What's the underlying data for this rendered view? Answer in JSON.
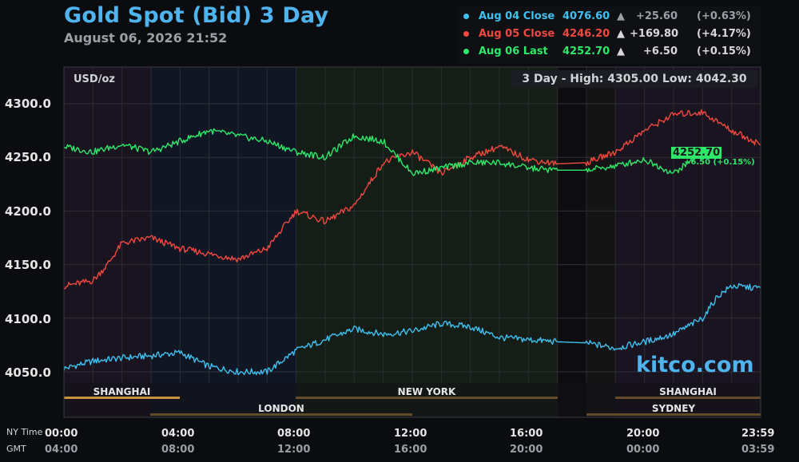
{
  "header": {
    "title": "Gold Spot (Bid) 3 Day",
    "timestamp": "August 06, 2026 21:52"
  },
  "legend": [
    {
      "label": "Aug 04 Close",
      "value": "4076.60",
      "arrow": "▲",
      "change": "+25.60",
      "pct": "(+0.63%)",
      "color": "#3fc0ef",
      "dim": true
    },
    {
      "label": "Aug 05 Close",
      "value": "4246.20",
      "arrow": "▲",
      "change": "+169.80",
      "pct": "(+4.17%)",
      "color": "#f0493f",
      "dim": false
    },
    {
      "label": "Aug 06 Last",
      "value": "4252.70",
      "arrow": "▲",
      "change": "+6.50",
      "pct": "(+0.15%)",
      "color": "#2ee86a",
      "dim": false
    }
  ],
  "stats": {
    "unit": "USD/oz",
    "high_low": "3 Day - High: 4305.00  Low: 4042.30"
  },
  "watermark": "kitco.com",
  "last_marker": {
    "value": "4252.70",
    "change": "+6.50 (+0.15%)"
  },
  "sessions": {
    "top_row": [
      "SHANGHAI",
      "NEW YORK",
      "SHANGHAI"
    ],
    "bottom_row": [
      "LONDON",
      "SYDNEY"
    ]
  },
  "time_axis": {
    "ny_label": "NY Time",
    "gmt_label": "GMT",
    "ny_ticks": [
      "00:00",
      "04:00",
      "08:00",
      "12:00",
      "16:00",
      "20:00",
      "23:59"
    ],
    "gmt_ticks": [
      "04:00",
      "08:00",
      "12:00",
      "16:00",
      "20:00",
      "00:00",
      "03:59"
    ]
  },
  "colors": {
    "aug04": "#3fc0ef",
    "aug05": "#f0493f",
    "aug06": "#2ee86a",
    "accent": "#4fb3ee",
    "session_bar": "#c8913c"
  },
  "chart_data": {
    "type": "line",
    "title": "Gold Spot (Bid) 3 Day",
    "ylabel": "USD/oz",
    "ylim": [
      4042.3,
      4305.0
    ],
    "yticks": [
      "4050.0",
      "4100.0",
      "4150.0",
      "4200.0",
      "4250.0",
      "4300.0"
    ],
    "xlim": [
      0,
      24
    ],
    "grid": true,
    "series": [
      {
        "name": "Aug 04",
        "color": "#3fc0ef",
        "x": [
          0,
          1,
          2,
          3,
          4,
          5,
          6,
          7,
          7.5,
          8,
          9,
          10,
          11,
          12,
          13,
          14,
          15,
          16,
          17,
          18,
          19,
          20,
          21,
          22,
          22.5,
          23,
          24
        ],
        "y": [
          4053,
          4060,
          4063,
          4065,
          4068,
          4055,
          4050,
          4050,
          4060,
          4070,
          4080,
          4090,
          4085,
          4088,
          4095,
          4092,
          4082,
          4080,
          4078,
          4077,
          4072,
          4078,
          4085,
          4100,
          4120,
          4130,
          4128
        ]
      },
      {
        "name": "Aug 05",
        "color": "#f0493f",
        "x": [
          0,
          1,
          1.5,
          2,
          3,
          4,
          5,
          6,
          7,
          8,
          9,
          10,
          11,
          12,
          13,
          14,
          15,
          16,
          17,
          18,
          19,
          20,
          21,
          22,
          23,
          24
        ],
        "y": [
          4130,
          4135,
          4150,
          4170,
          4175,
          4165,
          4160,
          4155,
          4165,
          4200,
          4190,
          4205,
          4245,
          4255,
          4235,
          4250,
          4260,
          4248,
          4244,
          4245,
          4255,
          4275,
          4290,
          4292,
          4275,
          4262
        ]
      },
      {
        "name": "Aug 06",
        "color": "#2ee86a",
        "x": [
          0,
          1,
          2,
          3,
          4,
          5,
          6,
          7,
          8,
          9,
          10,
          11,
          12,
          13,
          14,
          15,
          16,
          17,
          18,
          19,
          20,
          21,
          21.9
        ],
        "y": [
          4260,
          4255,
          4262,
          4255,
          4265,
          4275,
          4270,
          4265,
          4255,
          4250,
          4270,
          4265,
          4235,
          4240,
          4245,
          4245,
          4240,
          4238,
          4238,
          4242,
          4248,
          4235,
          4252.7
        ]
      }
    ]
  }
}
